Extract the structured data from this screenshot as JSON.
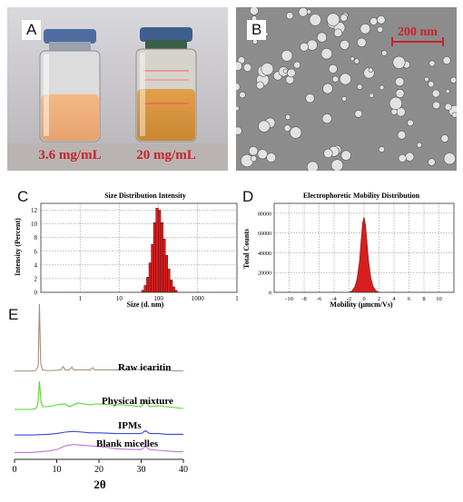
{
  "panels": {
    "a": {
      "label": "A",
      "vial_left_caption": "3.6 mg/mL",
      "vial_right_caption": "20 mg/mL"
    },
    "b": {
      "label": "B",
      "scale_bar": "200 nm"
    },
    "c": {
      "label": "C"
    },
    "d": {
      "label": "D"
    },
    "e": {
      "label": "E"
    }
  },
  "chart_data": [
    {
      "type": "bar",
      "panel": "C",
      "title": "Size Distribution Intensity",
      "xlabel": "Size (d. nm)",
      "ylabel": "Intensity (Percent)",
      "xscale": "log",
      "xlim": [
        0.1,
        10000
      ],
      "ylim": [
        0,
        13
      ],
      "xticks": [
        "1",
        "10",
        "100",
        "1000",
        "1"
      ],
      "yticks": [
        "0",
        "2",
        "4",
        "6",
        "8",
        "10",
        "12"
      ],
      "grid": true,
      "bar_color": "#d81e1e",
      "x": [
        40,
        46,
        53,
        61,
        70,
        80,
        92,
        106,
        122,
        140,
        160,
        184,
        212,
        243,
        280
      ],
      "values": [
        0.3,
        1.0,
        2.2,
        4.3,
        7.0,
        10.2,
        12.3,
        12.0,
        10.2,
        7.8,
        5.4,
        3.4,
        1.8,
        0.8,
        0.3
      ]
    },
    {
      "type": "area",
      "panel": "D",
      "title": "Electrophoretic Mobility Distribution",
      "xlabel": "Mobility (μmcm/Vs)",
      "ylabel": "Total Counts",
      "xlim": [
        -12,
        12
      ],
      "ylim": [
        0,
        90000
      ],
      "xticks": [
        "-10",
        "-8",
        "-6",
        "-4",
        "-2",
        "0",
        "2",
        "4",
        "6",
        "8",
        "10"
      ],
      "yticks": [
        "0",
        "20000",
        "40000",
        "60000",
        "80000"
      ],
      "grid": true,
      "fill_color": "#d81e1e",
      "x": [
        -2.0,
        -1.6,
        -1.2,
        -0.9,
        -0.6,
        -0.4,
        -0.2,
        0.0,
        0.2,
        0.4,
        0.6,
        0.9,
        1.2,
        1.6,
        2.0
      ],
      "values": [
        0,
        1500,
        6000,
        15000,
        32000,
        52000,
        70000,
        76000,
        68000,
        50000,
        32000,
        15000,
        6000,
        1500,
        0
      ]
    },
    {
      "type": "line",
      "panel": "E",
      "xlabel": "2θ",
      "xlim": [
        0,
        40
      ],
      "xticks": [
        "0",
        "10",
        "20",
        "30",
        "40"
      ],
      "grid": false,
      "series": [
        {
          "name": "Raw icaritin",
          "color": "#a58d78",
          "x": [
            0,
            4,
            5,
            5.6,
            5.9,
            6.2,
            6.6,
            7.5,
            9,
            11,
            11.5,
            12,
            13,
            13.6,
            14,
            16,
            18,
            18.5,
            19,
            22,
            24.5,
            25,
            26,
            28,
            30,
            31,
            32,
            34,
            36,
            40
          ],
          "y": [
            1,
            1,
            1.5,
            5,
            60,
            8,
            2,
            1.5,
            1.5,
            2,
            5,
            2,
            2,
            4.5,
            2,
            2,
            2,
            4,
            2,
            2,
            2,
            3.5,
            2,
            2,
            2.5,
            4,
            2.5,
            2,
            1.5,
            1
          ]
        },
        {
          "name": "Physical mixture",
          "color": "#5bd12f",
          "x": [
            0,
            4,
            5,
            5.5,
            5.9,
            6.3,
            6.8,
            8,
            10,
            12,
            13,
            15,
            18,
            19,
            20,
            23,
            26,
            28,
            30,
            31,
            32,
            34,
            36,
            38,
            40
          ],
          "y": [
            1.5,
            1.5,
            2,
            4,
            17,
            5,
            3,
            3,
            4,
            4.5,
            3,
            5,
            4,
            4.5,
            4.5,
            4,
            4,
            3.5,
            3,
            6,
            3,
            3.5,
            3,
            2.5,
            2
          ]
        },
        {
          "name": "IPMs",
          "color": "#3a48d2",
          "x": [
            0,
            4,
            8,
            10,
            12,
            14,
            16,
            18,
            20,
            24,
            28,
            30,
            31,
            32,
            34,
            36,
            38,
            40
          ],
          "y": [
            0.5,
            0.5,
            1,
            1.5,
            2.5,
            3,
            2.5,
            2,
            2,
            1.5,
            1.5,
            1.5,
            3.5,
            1.5,
            1.5,
            1,
            1,
            1
          ]
        },
        {
          "name": "Blank micelles",
          "color": "#c374d6",
          "x": [
            0,
            4,
            8,
            10,
            12,
            14,
            16,
            18,
            20,
            22,
            24,
            28,
            30,
            31,
            32,
            34,
            36,
            38,
            40
          ],
          "y": [
            1,
            1,
            2,
            3,
            5.5,
            6.5,
            6,
            5.5,
            5,
            4.5,
            3.5,
            3,
            3,
            5,
            3,
            2.5,
            2,
            1.5,
            1.5
          ]
        }
      ]
    }
  ]
}
